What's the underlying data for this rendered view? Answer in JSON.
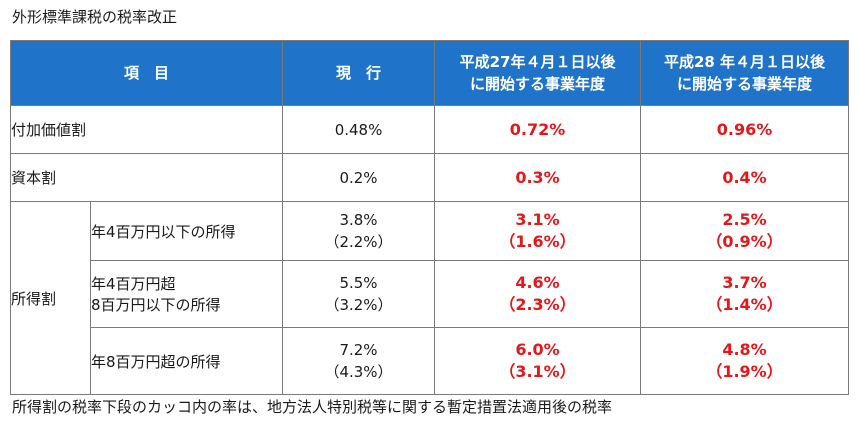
{
  "title": "外形標準課税の税率改正",
  "header": {
    "item": "項　目",
    "current": "現　行",
    "h27_line1": "平成27年４月１日以後",
    "h27_line2": "に開始する事業年度",
    "h28_line1": "平成28 年４月１日以後",
    "h28_line2": "に開始する事業年度"
  },
  "rows": {
    "added_value": {
      "label": "付加価値割",
      "current": "0.48%",
      "h27": "0.72%",
      "h28": "0.96%"
    },
    "capital": {
      "label": "資本割",
      "current": "0.2%",
      "h27": "0.3%",
      "h28": "0.4%"
    },
    "income": {
      "label": "所得割",
      "sub": [
        {
          "label": "年4百万円以下の所得",
          "current": "3.8%",
          "current_paren": "（2.2%）",
          "h27": "3.1%",
          "h27_paren": "（1.6%）",
          "h28": "2.5%",
          "h28_paren": "（0.9%）"
        },
        {
          "label_line1": "年4百万円超",
          "label_line2": "8百万円以下の所得",
          "current": "5.5%",
          "current_paren": "（3.2%）",
          "h27": "4.6%",
          "h27_paren": "（2.3%）",
          "h28": "3.7%",
          "h28_paren": "（1.4%）"
        },
        {
          "label": "年8百万円超の所得",
          "current": "7.2%",
          "current_paren": "（4.3%）",
          "h27": "6.0%",
          "h27_paren": "（3.1%）",
          "h28": "4.8%",
          "h28_paren": "（1.9%）"
        }
      ]
    }
  },
  "footnote": "所得割の税率下段のカッコ内の率は、地方法人特別税等に関する暫定措置法適用後の税率",
  "colors": {
    "header_bg": "#1f73c8",
    "new_rate": "#e8161b"
  }
}
